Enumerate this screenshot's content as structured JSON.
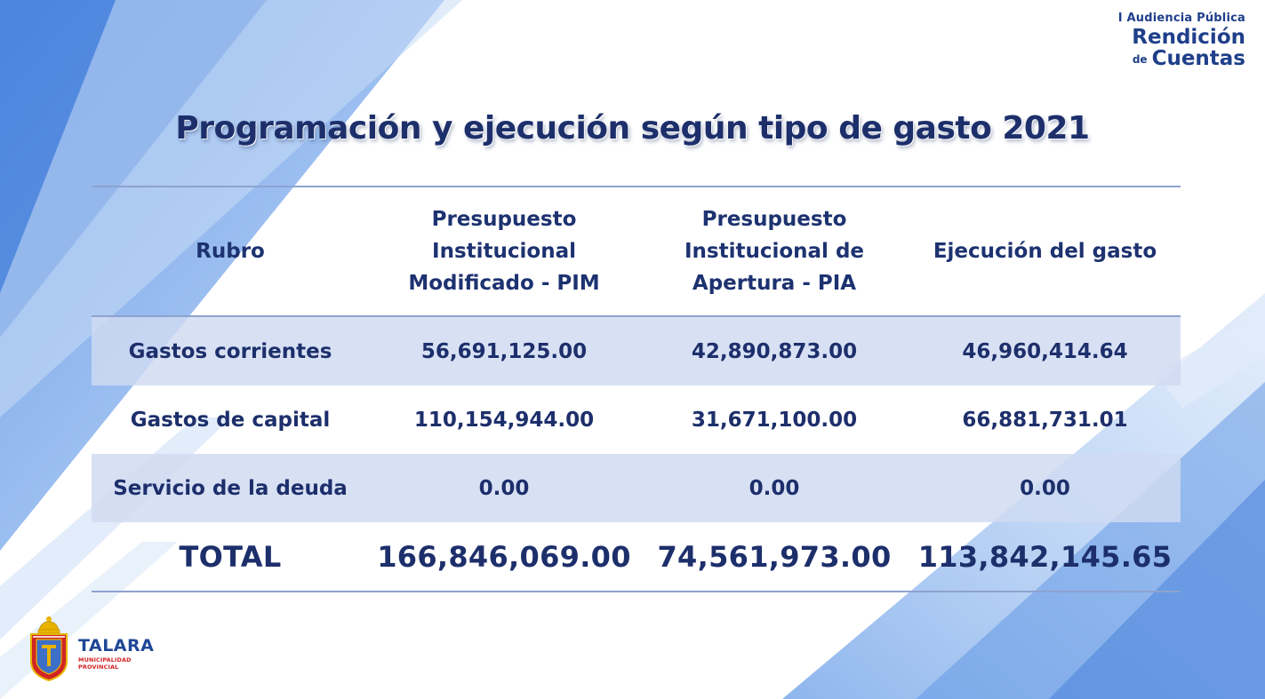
{
  "branding": {
    "event_line": "I Audiencia Pública",
    "line2": "Rendición",
    "line3_prefix": "de",
    "line3_main": "Cuentas"
  },
  "title": "Programación y ejecución según tipo de gasto 2021",
  "table": {
    "headers": [
      [
        "Rubro"
      ],
      [
        "Presupuesto",
        "Institucional",
        "Modificado - PIM"
      ],
      [
        "Presupuesto",
        "Institucional de",
        "Apertura - PIA"
      ],
      [
        "Ejecución del gasto"
      ]
    ],
    "rows": [
      {
        "rubro": "Gastos corrientes",
        "pim": "56,691,125.00",
        "pia": "42,890,873.00",
        "ejecucion": "46,960,414.64"
      },
      {
        "rubro": "Gastos de capital",
        "pim": "110,154,944.00",
        "pia": "31,671,100.00",
        "ejecucion": "66,881,731.01"
      },
      {
        "rubro": "Servicio de la deuda",
        "pim": "0.00",
        "pia": "0.00",
        "ejecucion": "0.00"
      }
    ],
    "total": {
      "rubro": "TOTAL",
      "pim": "166,846,069.00",
      "pia": "74,561,973.00",
      "ejecucion": "113,842,145.65"
    }
  },
  "logo": {
    "name": "TALARA",
    "subtitle": "MUNICIPALIDAD PROVINCIAL"
  },
  "colors": {
    "primary_text": "#1d2f6b",
    "row_shade": "#d0dbf2",
    "rule": "#8ea2cf",
    "crest_red": "#d12424",
    "crest_gold": "#e8b400"
  }
}
